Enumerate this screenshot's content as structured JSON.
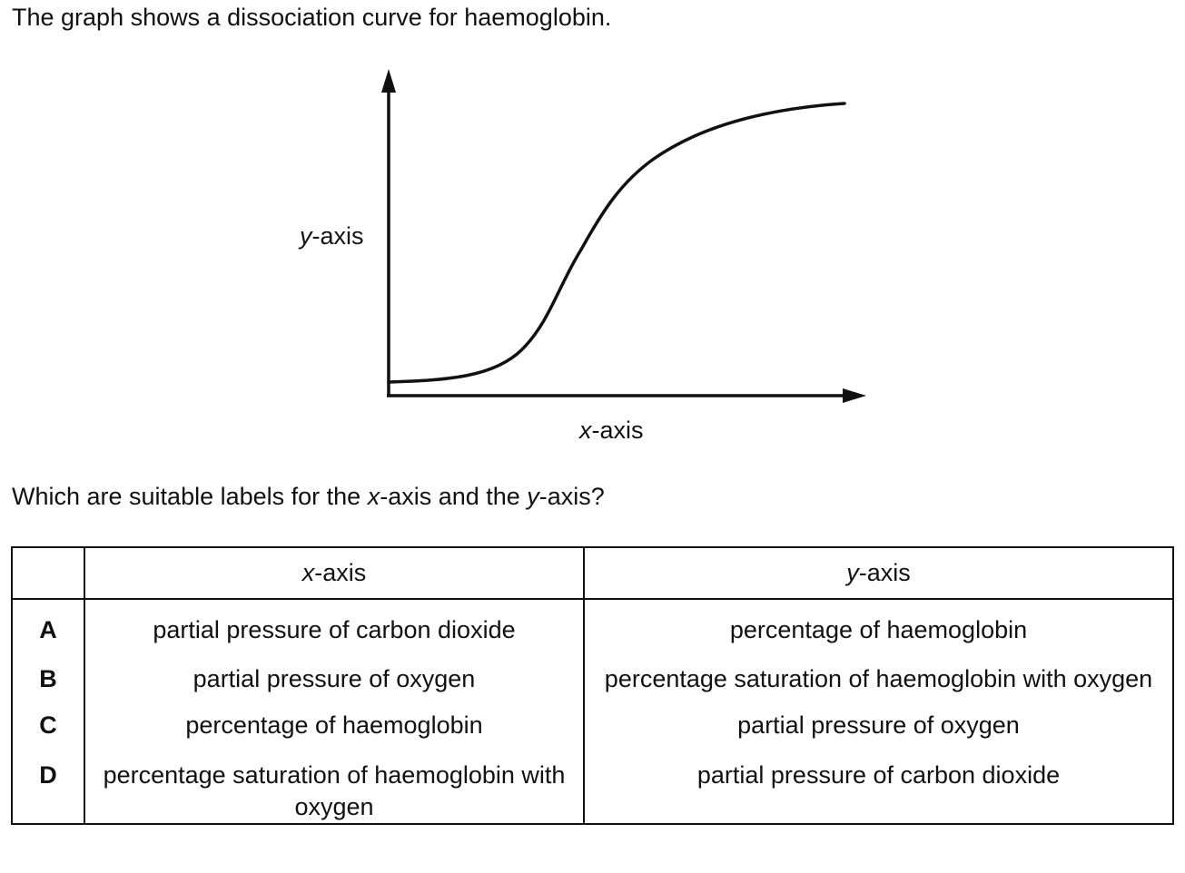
{
  "intro": "The graph shows a dissociation curve for haemoglobin.",
  "graph": {
    "y_label_var": "y",
    "y_label_rest": "-axis",
    "x_label_var": "x",
    "x_label_rest": "-axis"
  },
  "question": {
    "part1": "Which are suitable labels for the ",
    "x_var": "x",
    "part2": "-axis and the ",
    "y_var": "y",
    "part3": "-axis?"
  },
  "table": {
    "header": {
      "letter": "",
      "x_var": "x",
      "x_rest": "-axis",
      "y_var": "y",
      "y_rest": "-axis"
    },
    "rows": [
      {
        "letter": "A",
        "x": "partial pressure of carbon dioxide",
        "y": "percentage of haemoglobin"
      },
      {
        "letter": "B",
        "x": "partial pressure of oxygen",
        "y": "percentage saturation of haemoglobin with oxygen"
      },
      {
        "letter": "C",
        "x": "percentage of haemoglobin",
        "y": "partial pressure of oxygen"
      },
      {
        "letter": "D",
        "x": "percentage saturation of haemoglobin with oxygen",
        "y": "partial pressure of carbon dioxide"
      }
    ]
  }
}
